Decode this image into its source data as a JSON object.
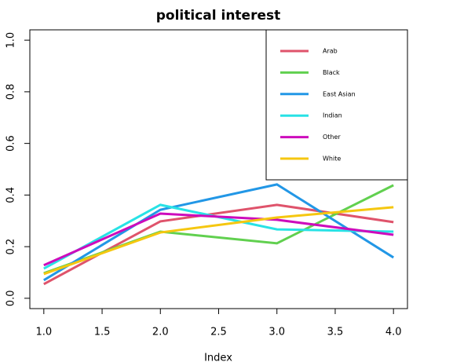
{
  "chart_data": {
    "type": "line",
    "title": "political interest",
    "xlabel": "Index",
    "x": [
      1,
      2,
      3,
      4
    ],
    "series": [
      {
        "name": "Arab",
        "color": "#DF536B",
        "values": [
          0.055,
          0.298,
          0.362,
          0.295
        ]
      },
      {
        "name": "Black",
        "color": "#61D04F",
        "values": [
          0.097,
          0.258,
          0.213,
          0.438
        ]
      },
      {
        "name": "East Asian",
        "color": "#2297E6",
        "values": [
          0.07,
          0.343,
          0.441,
          0.158
        ]
      },
      {
        "name": "Indian",
        "color": "#28E2E5",
        "values": [
          0.115,
          0.362,
          0.267,
          0.258
        ]
      },
      {
        "name": "Other",
        "color": "#CD0BBC",
        "values": [
          0.128,
          0.328,
          0.304,
          0.246
        ]
      },
      {
        "name": "White",
        "color": "#F5C710",
        "values": [
          0.094,
          0.255,
          0.313,
          0.353
        ]
      }
    ],
    "xlim": [
      0.88,
      4.12
    ],
    "xticks": [
      {
        "value": 1,
        "label": "1.0"
      },
      1.5,
      {
        "value": 2,
        "label": "2.0"
      },
      2.5,
      {
        "value": 3,
        "label": "3.0"
      },
      3.5,
      {
        "value": 4,
        "label": "4.0"
      }
    ],
    "ylim": [
      -0.04,
      1.04
    ],
    "yticks": [
      {
        "value": 0,
        "label": "0.0"
      },
      0.2,
      0.4,
      0.6,
      0.8,
      {
        "value": 1,
        "label": "1.0"
      }
    ],
    "legend": "top-right"
  }
}
